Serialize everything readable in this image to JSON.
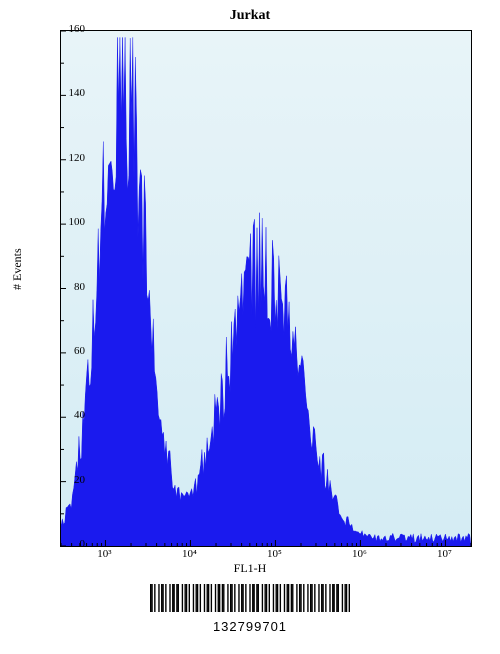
{
  "chart": {
    "type": "histogram",
    "title": "Jurkat",
    "xlabel": "FL1-H",
    "ylabel": "# Events",
    "title_fontsize": 14,
    "label_fontsize": 12,
    "tick_fontsize": 11,
    "background_gradient": [
      "#e8f4f8",
      "#d4ecf4"
    ],
    "fill_color": "#1a1aee",
    "border_color": "#000000",
    "ylim": [
      0,
      160
    ],
    "ytick_step": 20,
    "yticks": [
      0,
      20,
      40,
      60,
      80,
      100,
      120,
      140,
      160
    ],
    "xscale": "log",
    "xlim": [
      300,
      20000000
    ],
    "xticks": [
      1000,
      10000,
      100000,
      1000000,
      10000000
    ],
    "xtick_labels": [
      "10³",
      "10⁴",
      "10⁵",
      "10⁶",
      "10⁷"
    ],
    "peaks": [
      {
        "center_log": 3.2,
        "height": 143,
        "width_log": 0.28
      },
      {
        "center_log": 4.85,
        "height": 85,
        "width_log": 0.44
      }
    ],
    "noise_baseline": 2
  },
  "barcode": {
    "number": "132799701",
    "pattern": "1101001011010010110110010110100101101001011010010110110010110100101101001011011001011010010110100101101100101101001011010010110100101101100101101"
  }
}
